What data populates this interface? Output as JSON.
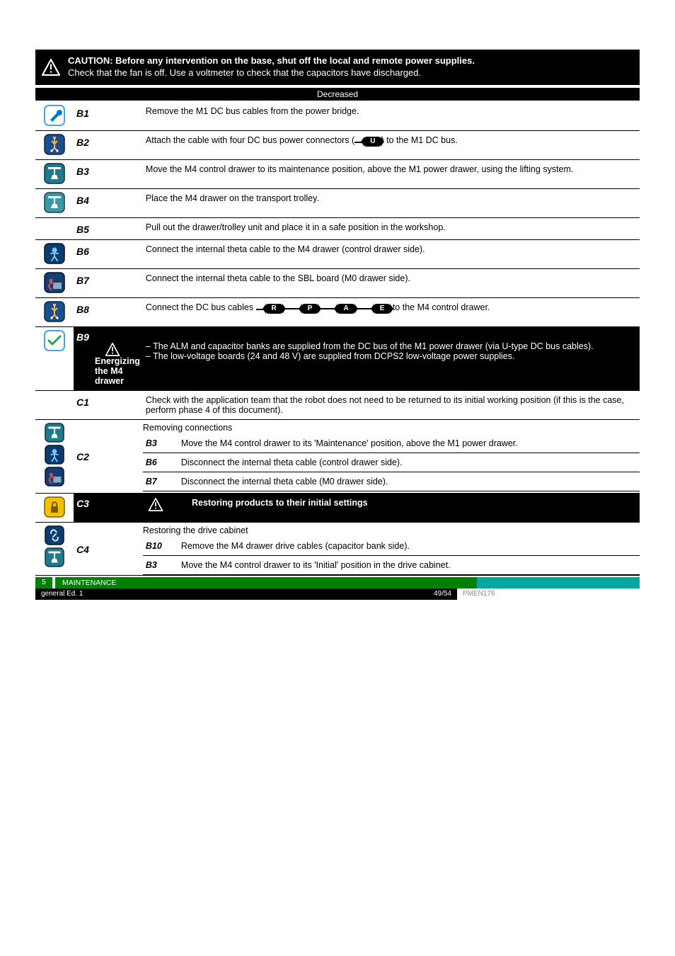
{
  "banner": {
    "title": "CAUTION: Before any intervention on the base, shut off the local and remote power supplies.",
    "subtitle": "Check that the fan is off. Use a voltmeter to check that the capacitors have discharged."
  },
  "decrease_label": "Decreased",
  "rows": [
    {
      "code": "B1",
      "icons": [
        "wrench-white"
      ],
      "text": "Remove the M1 DC bus cables from the power bridge."
    },
    {
      "code": "B2",
      "icons": [
        "usb-blue"
      ],
      "text_before": "Attach the cable with four DC bus power connectors (",
      "text_after": ") to the M1 DC bus.",
      "chain": [
        "U"
      ]
    },
    {
      "code": "B3",
      "icons": [
        "hoist-teal"
      ],
      "text": "Move the M4 control drawer to its maintenance position, above the M1 power drawer, using the lifting system."
    },
    {
      "code": "B4",
      "icons": [
        "hoist-teal-light"
      ],
      "text": "Place the M4 drawer on the transport trolley."
    },
    {
      "code": "B5",
      "icons": [],
      "text": "Pull out the drawer/trolley unit and place it in a safe position in the workshop."
    },
    {
      "code": "B6",
      "icons": [
        "person-blue"
      ],
      "text": "Connect the internal theta cable to the M4 drawer (control drawer side)."
    },
    {
      "code": "B7",
      "icons": [
        "box-blue"
      ],
      "text": "Connect the internal theta cable to the SBL board (M0 drawer side)."
    },
    {
      "code": "B8",
      "icons": [
        "usb-blue"
      ],
      "text_before": "Connect the DC bus cables ",
      "text_after": " to the M4 control drawer.",
      "chain": [
        "R",
        "P",
        "A",
        "E"
      ]
    }
  ],
  "b9": {
    "code": "B9",
    "title": "Energizing the M4 drawer",
    "text": "– The ALM and capacitor banks are supplied from the DC bus of the M1 power drawer (via U-type DC bus cables).\n– The low-voltage boards (24 and 48 V) are supplied from DCPS2 low-voltage power supplies."
  },
  "c1": {
    "code": "C1",
    "text": "Check with the application team that the robot does not need to be returned to its initial working position (if this is the case, perform phase 4 of this document)."
  },
  "c2": {
    "code": "C2",
    "title": "Removing connections",
    "items": [
      {
        "ref": "B3",
        "text": "Move the M4 control drawer to its 'Maintenance' position, above the M1 power drawer."
      },
      {
        "ref": "B6",
        "text": "Disconnect the internal theta cable (control drawer side)."
      },
      {
        "ref": "B7",
        "text": "Disconnect the internal theta cable (M0 drawer side)."
      }
    ]
  },
  "c3": {
    "code": "C3",
    "title": "Restoring products to their initial settings"
  },
  "c4": {
    "code": "C4",
    "title": "Restoring the drive cabinet",
    "items": [
      {
        "ref": "B10",
        "text": "Remove the M4 drawer drive cables (capacitor bank side)."
      },
      {
        "ref": "B3",
        "text": "Move the M4 control drawer to its 'Initial' position in the drive cabinet."
      }
    ]
  },
  "footer": {
    "green_num": "5",
    "green_label": "MAINTENANCE",
    "black_left": "general Ed. 1",
    "black_right": "49/54",
    "white_right": "PMEN176"
  },
  "icon_colors": {
    "wrench-white": {
      "bg": "#ffffff",
      "border": "#4aa3df",
      "fg": "#0077cc"
    },
    "usb-blue": {
      "bg": "#1b4f8a",
      "border": "#06233f",
      "fg": "#ffffff"
    },
    "hoist-teal": {
      "bg": "#1f7a8c",
      "border": "#0a2f38",
      "fg": "#ffffff"
    },
    "hoist-teal-light": {
      "bg": "#3a98a9",
      "border": "#14424c",
      "fg": "#ffffff"
    },
    "person-blue": {
      "bg": "#0b3c6e",
      "border": "#031425",
      "fg": "#7fc4ff"
    },
    "box-blue": {
      "bg": "#123e71",
      "border": "#031425",
      "fg": "#e24f4f"
    },
    "check-white": {
      "bg": "#ffffff",
      "border": "#4aa3df",
      "fg": "#1fa84b"
    },
    "lock-yellow": {
      "bg": "#f2c200",
      "border": "#7a5c00",
      "fg": "#7a5c00"
    },
    "chain-blue": {
      "bg": "#0b3c6e",
      "border": "#031425",
      "fg": "#cfe8ff"
    }
  }
}
